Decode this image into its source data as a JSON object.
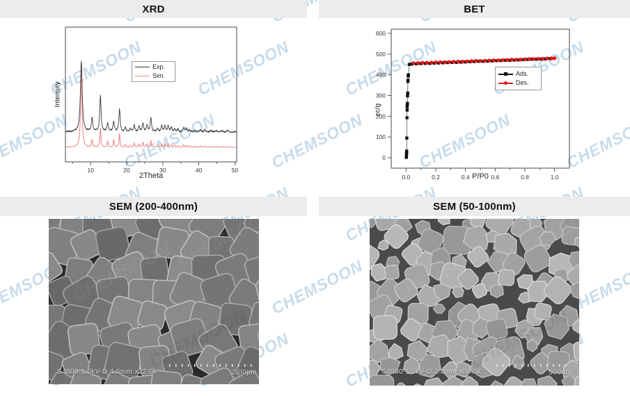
{
  "page": {
    "watermark_text": "CHEMSOON",
    "watermark_color": "#b4cfe4",
    "header_bg": "#ececec"
  },
  "panels": {
    "xrd": {
      "title": "XRD"
    },
    "bet": {
      "title": "BET"
    },
    "sem_large": {
      "title": "SEM (200-400nm)",
      "caption": "S4800 1.0kV-D 4.6mm x22.0k",
      "scale_label": "2.00μm"
    },
    "sem_small": {
      "title": "SEM (50-100nm)",
      "caption": "S4800 1.0kV-D 2.8mm x80.0k",
      "scale_label": "500nm"
    }
  },
  "chart_data": [
    {
      "type": "line",
      "title": "XRD",
      "xlabel": "2Theta",
      "ylabel": "Intensity",
      "xlim": [
        3.0,
        50.5
      ],
      "x_ticks_major": [
        10,
        20,
        30,
        40,
        50
      ],
      "x_tick_labels": [
        "10",
        "20",
        "30",
        "40",
        "50"
      ],
      "x_ticks_minor": [
        5,
        15,
        25,
        35,
        45
      ],
      "grid": false,
      "legend_position": "upper-center",
      "series": [
        {
          "name": "Exp.",
          "color": "#3a3a3a",
          "peak_width": 0.22,
          "peaks": [
            [
              7.4,
              100
            ],
            [
              10.4,
              20
            ],
            [
              12.7,
              51
            ],
            [
              14.7,
              13
            ],
            [
              16.4,
              15
            ],
            [
              18.0,
              32
            ],
            [
              19.6,
              6
            ],
            [
              21.0,
              5
            ],
            [
              22.1,
              9
            ],
            [
              23.4,
              8
            ],
            [
              24.5,
              12
            ],
            [
              25.6,
              9
            ],
            [
              26.7,
              20
            ],
            [
              28.6,
              6
            ],
            [
              29.7,
              8
            ],
            [
              30.6,
              9
            ],
            [
              31.5,
              8
            ],
            [
              32.4,
              6
            ],
            [
              33.3,
              4
            ],
            [
              34.2,
              4
            ],
            [
              35.8,
              6
            ],
            [
              36.6,
              4
            ],
            [
              37.4,
              3
            ],
            [
              39.0,
              3
            ],
            [
              40.5,
              3
            ],
            [
              41.6,
              3
            ],
            [
              43.3,
              2.5
            ],
            [
              44.9,
              2.5
            ],
            [
              46.5,
              2
            ],
            [
              48.0,
              2
            ]
          ]
        },
        {
          "name": "Sim.",
          "color": "#ee8888",
          "peak_width": 0.16,
          "peaks": [
            [
              7.4,
              100
            ],
            [
              10.4,
              9
            ],
            [
              12.7,
              23
            ],
            [
              14.7,
              7
            ],
            [
              16.4,
              9
            ],
            [
              18.0,
              16
            ],
            [
              19.6,
              3
            ],
            [
              21.0,
              2
            ],
            [
              22.1,
              5
            ],
            [
              23.4,
              4
            ],
            [
              24.5,
              6
            ],
            [
              25.6,
              4
            ],
            [
              26.7,
              8
            ],
            [
              28.6,
              3
            ],
            [
              29.7,
              4
            ],
            [
              30.6,
              4
            ],
            [
              31.5,
              4
            ],
            [
              32.4,
              3
            ],
            [
              33.3,
              2
            ],
            [
              34.2,
              2
            ],
            [
              35.8,
              3
            ],
            [
              36.6,
              2
            ],
            [
              37.4,
              2
            ],
            [
              39.0,
              1.5
            ],
            [
              40.5,
              1.5
            ],
            [
              41.6,
              1.5
            ],
            [
              43.3,
              1.2
            ],
            [
              44.9,
              1.2
            ],
            [
              46.5,
              1
            ],
            [
              48.0,
              1
            ]
          ]
        }
      ]
    },
    {
      "type": "scatter",
      "title": "BET",
      "xlabel": "P/P0",
      "ylabel": "cc/g",
      "xlim": [
        -0.1,
        1.1
      ],
      "ylim": [
        -50,
        620
      ],
      "x_ticks": [
        0.0,
        0.2,
        0.4,
        0.6,
        0.8,
        1.0
      ],
      "x_tick_labels": [
        "0.0",
        "0.2",
        "0.4",
        "0.6",
        "0.8",
        "1.0"
      ],
      "x_ticks_minor": [
        0.1,
        0.3,
        0.5,
        0.7,
        0.9
      ],
      "y_ticks": [
        0,
        100,
        200,
        300,
        400,
        500,
        600
      ],
      "y_tick_labels": [
        "0",
        "100",
        "200",
        "300",
        "400",
        "500",
        "600"
      ],
      "grid": false,
      "legend_position": "middle-right",
      "series": [
        {
          "name": "Ads.",
          "marker": "square",
          "color": "#111111",
          "line_color": "#555555",
          "points": [
            [
              0.002,
              2
            ],
            [
              0.002,
              8
            ],
            [
              0.003,
              14
            ],
            [
              0.003,
              20
            ],
            [
              0.004,
              26
            ],
            [
              0.004,
              32
            ],
            [
              0.005,
              95
            ],
            [
              0.006,
              193
            ],
            [
              0.007,
              230
            ],
            [
              0.007,
              246
            ],
            [
              0.008,
              254
            ],
            [
              0.009,
              262
            ],
            [
              0.01,
              298
            ],
            [
              0.011,
              312
            ],
            [
              0.012,
              368
            ],
            [
              0.013,
              374
            ],
            [
              0.014,
              394
            ],
            [
              0.016,
              400
            ],
            [
              0.022,
              450
            ],
            [
              0.04,
              452
            ],
            [
              0.07,
              453
            ],
            [
              0.1,
              454
            ],
            [
              0.13,
              455
            ],
            [
              0.16,
              455
            ],
            [
              0.19,
              456
            ],
            [
              0.22,
              457
            ],
            [
              0.25,
              458
            ],
            [
              0.28,
              459
            ],
            [
              0.31,
              460
            ],
            [
              0.34,
              460
            ],
            [
              0.37,
              461
            ],
            [
              0.4,
              462
            ],
            [
              0.43,
              463
            ],
            [
              0.46,
              464
            ],
            [
              0.49,
              465
            ],
            [
              0.52,
              465
            ],
            [
              0.55,
              466
            ],
            [
              0.58,
              467
            ],
            [
              0.61,
              468
            ],
            [
              0.64,
              469
            ],
            [
              0.67,
              470
            ],
            [
              0.7,
              470
            ],
            [
              0.73,
              471
            ],
            [
              0.76,
              472
            ],
            [
              0.79,
              473
            ],
            [
              0.82,
              474
            ],
            [
              0.85,
              475
            ],
            [
              0.88,
              475
            ],
            [
              0.91,
              476
            ],
            [
              0.94,
              477
            ],
            [
              0.97,
              478
            ]
          ]
        },
        {
          "name": "Des.",
          "marker": "circle",
          "color": "#e01b1b",
          "line_color": "#e04040",
          "points": [
            [
              0.05,
              456
            ],
            [
              0.08,
              457
            ],
            [
              0.11,
              458
            ],
            [
              0.14,
              458
            ],
            [
              0.17,
              459
            ],
            [
              0.2,
              460
            ],
            [
              0.23,
              461
            ],
            [
              0.26,
              461
            ],
            [
              0.29,
              462
            ],
            [
              0.32,
              463
            ],
            [
              0.35,
              464
            ],
            [
              0.38,
              464
            ],
            [
              0.41,
              465
            ],
            [
              0.44,
              466
            ],
            [
              0.47,
              467
            ],
            [
              0.5,
              467
            ],
            [
              0.53,
              468
            ],
            [
              0.56,
              469
            ],
            [
              0.59,
              470
            ],
            [
              0.62,
              470
            ],
            [
              0.65,
              471
            ],
            [
              0.68,
              472
            ],
            [
              0.71,
              473
            ],
            [
              0.74,
              473
            ],
            [
              0.77,
              474
            ],
            [
              0.8,
              475
            ],
            [
              0.83,
              476
            ],
            [
              0.86,
              476
            ],
            [
              0.89,
              477
            ],
            [
              0.92,
              478
            ],
            [
              0.95,
              479
            ],
            [
              0.98,
              479
            ],
            [
              1.0,
              480
            ]
          ]
        }
      ]
    }
  ]
}
